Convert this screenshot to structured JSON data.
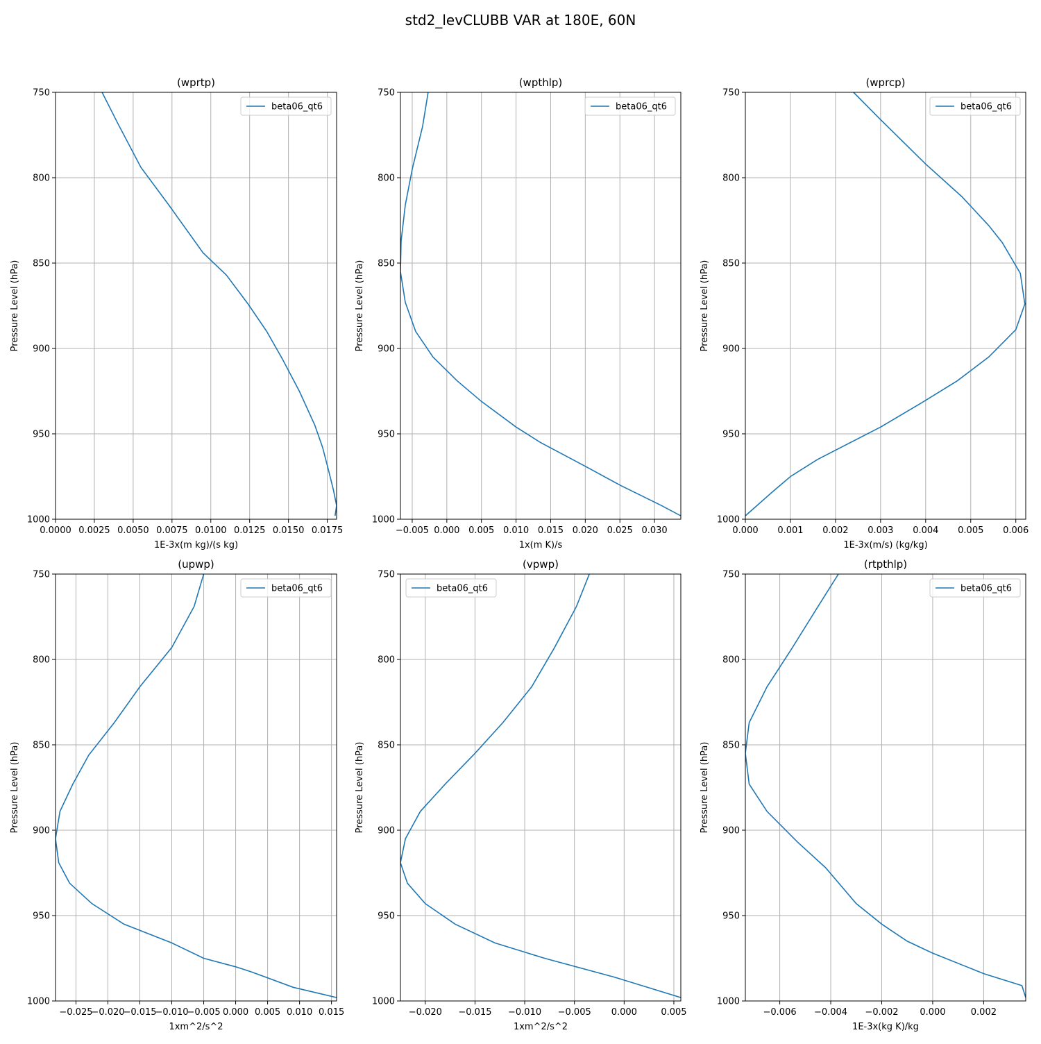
{
  "figure": {
    "suptitle": "std2_levCLUBB VAR at 180E, 60N"
  },
  "colors": {
    "series": "#1f77b4",
    "grid": "#b0b0b0",
    "axes": "#000000",
    "legend_border": "#cccccc"
  },
  "chart_data": [
    {
      "type": "line",
      "title": "(wprtp)",
      "xlabel": "1E-3x(m kg)/(s kg)",
      "ylabel": "Pressure Level (hPa)",
      "xlim": [
        0.0,
        0.0181
      ],
      "ylim": [
        1000,
        750
      ],
      "grid": true,
      "legend_placement": "upper right",
      "xticks": [
        0.0,
        0.0025,
        0.005,
        0.0075,
        0.01,
        0.0125,
        0.015,
        0.0175
      ],
      "xtick_labels": [
        "0.0000",
        "0.0025",
        "0.0050",
        "0.0075",
        "0.0100",
        "0.0125",
        "0.0150",
        "0.0175"
      ],
      "yticks": [
        750,
        800,
        850,
        900,
        950,
        1000
      ],
      "ytick_labels": [
        "750",
        "800",
        "850",
        "900",
        "950",
        "1000"
      ],
      "series": [
        {
          "name": "beta06_qt6",
          "x": [
            0.003,
            0.004,
            0.0055,
            0.0073,
            0.0095,
            0.011,
            0.0124,
            0.0136,
            0.0146,
            0.0157,
            0.0167,
            0.0172,
            0.0176,
            0.0179,
            0.0181,
            0.018
          ],
          "y": [
            750,
            768,
            794,
            816,
            844,
            857,
            874,
            890,
            906,
            925,
            945,
            958,
            972,
            983,
            992,
            998
          ]
        }
      ]
    },
    {
      "type": "line",
      "title": "(wpthlp)",
      "xlabel": "1x(m K)/s",
      "ylabel": "Pressure Level (hPa)",
      "xlim": [
        -0.0067,
        0.0338
      ],
      "ylim": [
        1000,
        750
      ],
      "grid": true,
      "legend_placement": "upper right",
      "xticks": [
        -0.005,
        0.0,
        0.005,
        0.01,
        0.015,
        0.02,
        0.025,
        0.03
      ],
      "xtick_labels": [
        "−0.005",
        "0.000",
        "0.005",
        "0.010",
        "0.015",
        "0.020",
        "0.025",
        "0.030"
      ],
      "yticks": [
        750,
        800,
        850,
        900,
        950,
        1000
      ],
      "ytick_labels": [
        "750",
        "800",
        "850",
        "900",
        "950",
        "1000"
      ],
      "series": [
        {
          "name": "beta06_qt6",
          "x": [
            -0.0027,
            -0.0035,
            -0.005,
            -0.006,
            -0.0066,
            -0.0067,
            -0.006,
            -0.0045,
            -0.002,
            0.0015,
            0.005,
            0.01,
            0.0135,
            0.02,
            0.025,
            0.031,
            0.0338
          ],
          "y": [
            750,
            770,
            795,
            816,
            837,
            855,
            873,
            890,
            905,
            919,
            931,
            946,
            955,
            969,
            980,
            992,
            998
          ]
        }
      ]
    },
    {
      "type": "line",
      "title": "(wprcp)",
      "xlabel": "1E-3x(m/s) (kg/kg)",
      "ylabel": "Pressure Level (hPa)",
      "xlim": [
        0.0,
        0.00622
      ],
      "ylim": [
        1000,
        750
      ],
      "grid": true,
      "legend_placement": "upper right",
      "xticks": [
        0.0,
        0.001,
        0.002,
        0.003,
        0.004,
        0.005,
        0.006
      ],
      "xtick_labels": [
        "0.000",
        "0.001",
        "0.002",
        "0.003",
        "0.004",
        "0.005",
        "0.006"
      ],
      "yticks": [
        750,
        800,
        850,
        900,
        950,
        1000
      ],
      "ytick_labels": [
        "750",
        "800",
        "850",
        "900",
        "950",
        "1000"
      ],
      "series": [
        {
          "name": "beta06_qt6",
          "x": [
            0.0024,
            0.003,
            0.004,
            0.0048,
            0.0054,
            0.0057,
            0.0061,
            0.0062,
            0.006,
            0.0054,
            0.0047,
            0.0039,
            0.003,
            0.0016,
            0.001,
            0.0006,
            0.0
          ],
          "y": [
            750,
            766,
            792,
            811,
            828,
            838,
            856,
            874,
            889,
            905,
            919,
            932,
            946,
            965,
            975,
            984,
            998
          ]
        }
      ]
    },
    {
      "type": "line",
      "title": "(upwp)",
      "xlabel": "1xm^2/s^2",
      "ylabel": "Pressure Level (hPa)",
      "xlim": [
        -0.0282,
        0.0158
      ],
      "ylim": [
        1000,
        750
      ],
      "grid": true,
      "legend_placement": "upper right",
      "xticks": [
        -0.025,
        -0.02,
        -0.015,
        -0.01,
        -0.005,
        0.0,
        0.005,
        0.01,
        0.015
      ],
      "xtick_labels": [
        "−0.025",
        "−0.020",
        "−0.015",
        "−0.010",
        "−0.005",
        "0.000",
        "0.005",
        "0.010",
        "0.015"
      ],
      "yticks": [
        750,
        800,
        850,
        900,
        950,
        1000
      ],
      "ytick_labels": [
        "750",
        "800",
        "850",
        "900",
        "950",
        "1000"
      ],
      "series": [
        {
          "name": "beta06_qt6",
          "x": [
            -0.005,
            -0.0065,
            -0.01,
            -0.015,
            -0.019,
            -0.023,
            -0.0255,
            -0.0275,
            -0.0282,
            -0.0277,
            -0.026,
            -0.0225,
            -0.0175,
            -0.01,
            -0.005,
            0.0,
            0.0025,
            0.009,
            0.0158
          ],
          "y": [
            750,
            769,
            793,
            816,
            837,
            856,
            873,
            889,
            905,
            919,
            931,
            943,
            955,
            966,
            975,
            980,
            983,
            992,
            998
          ]
        }
      ]
    },
    {
      "type": "line",
      "title": "(vpwp)",
      "xlabel": "1xm^2/s^2",
      "ylabel": "Pressure Level (hPa)",
      "xlim": [
        -0.0225,
        0.0057
      ],
      "ylim": [
        1000,
        750
      ],
      "grid": true,
      "legend_placement": "upper left",
      "xticks": [
        -0.02,
        -0.015,
        -0.01,
        -0.005,
        0.0,
        0.005
      ],
      "xtick_labels": [
        "−0.020",
        "−0.015",
        "−0.010",
        "−0.005",
        "0.000",
        "0.005"
      ],
      "yticks": [
        750,
        800,
        850,
        900,
        950,
        1000
      ],
      "ytick_labels": [
        "750",
        "800",
        "850",
        "900",
        "950",
        "1000"
      ],
      "series": [
        {
          "name": "beta06_qt6",
          "x": [
            -0.0035,
            -0.0048,
            -0.007,
            -0.0093,
            -0.0122,
            -0.015,
            -0.018,
            -0.0205,
            -0.022,
            -0.0225,
            -0.0218,
            -0.02,
            -0.017,
            -0.013,
            -0.008,
            -0.001,
            0.0057
          ],
          "y": [
            750,
            769,
            793,
            816,
            837,
            855,
            873,
            889,
            905,
            919,
            931,
            943,
            955,
            966,
            975,
            986,
            998
          ]
        }
      ]
    },
    {
      "type": "line",
      "title": "(rtpthlp)",
      "xlabel": "1E-3x(kg K)/kg",
      "ylabel": "Pressure Level (hPa)",
      "xlim": [
        -0.00735,
        0.00365
      ],
      "ylim": [
        1000,
        750
      ],
      "grid": true,
      "legend_placement": "upper right",
      "xticks": [
        -0.006,
        -0.004,
        -0.002,
        0.0,
        0.002
      ],
      "xtick_labels": [
        "−0.006",
        "−0.004",
        "−0.002",
        "0.000",
        "0.002"
      ],
      "yticks": [
        750,
        800,
        850,
        900,
        950,
        1000
      ],
      "ytick_labels": [
        "750",
        "800",
        "850",
        "900",
        "950",
        "1000"
      ],
      "series": [
        {
          "name": "beta06_qt6",
          "x": [
            -0.0037,
            -0.0045,
            -0.0055,
            -0.0065,
            -0.0072,
            -0.00735,
            -0.0072,
            -0.0065,
            -0.0053,
            -0.0042,
            -0.003,
            -0.002,
            -0.001,
            0.0,
            0.002,
            0.0035,
            0.00365
          ],
          "y": [
            750,
            769,
            793,
            816,
            837,
            855,
            873,
            889,
            907,
            922,
            943,
            955,
            965,
            972,
            984,
            991,
            998
          ]
        }
      ]
    }
  ]
}
